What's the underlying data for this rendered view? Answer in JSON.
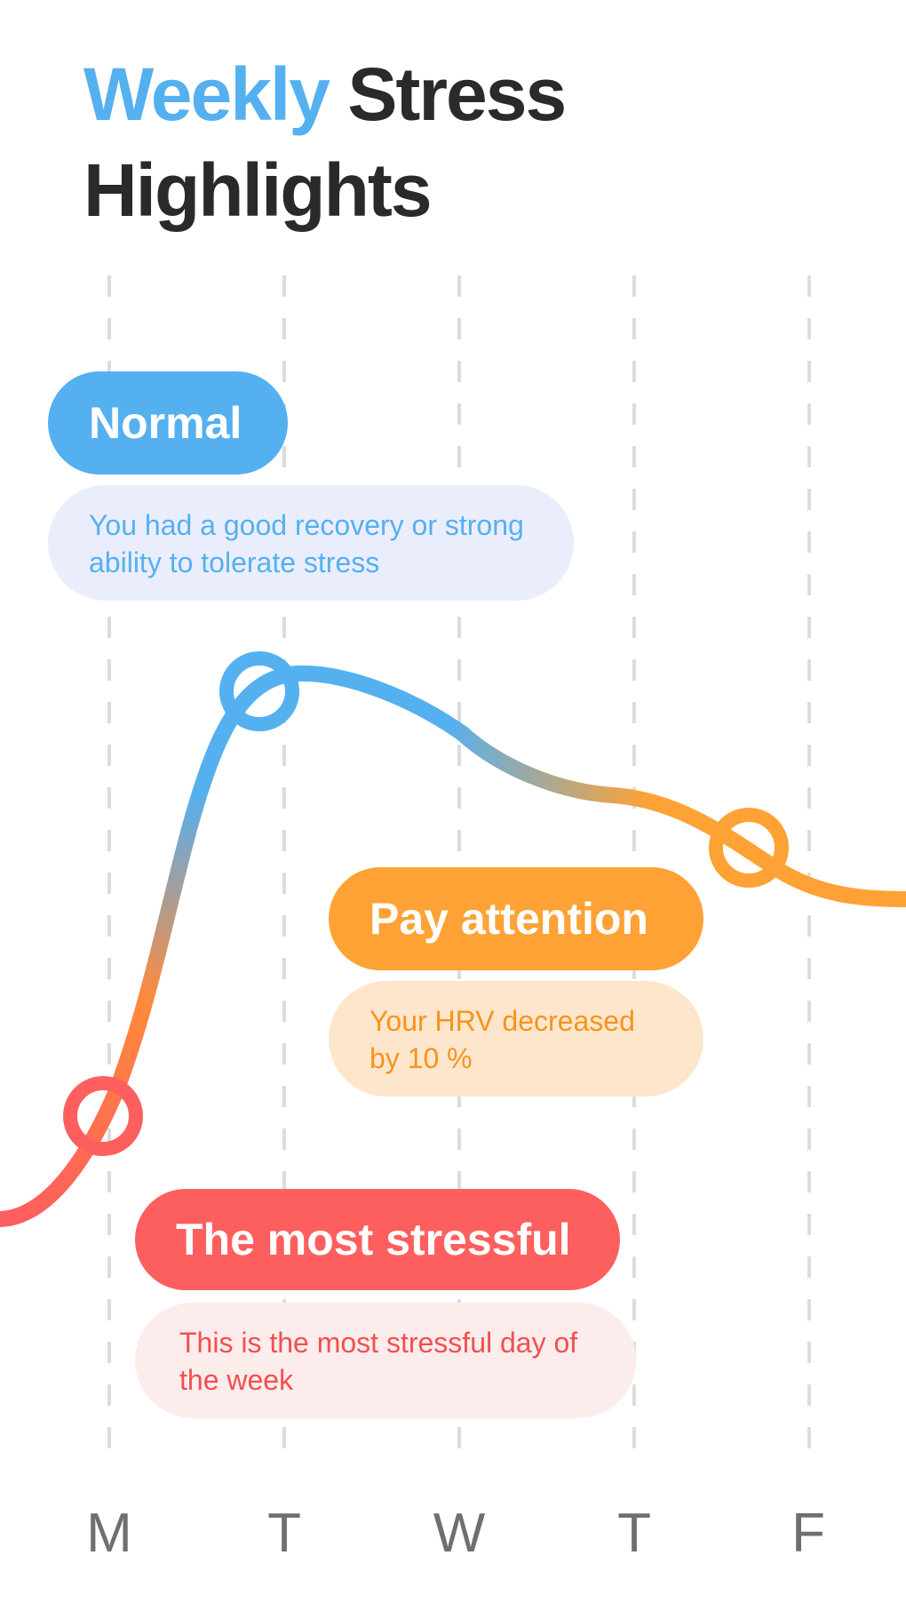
{
  "title": {
    "accent": "Weekly",
    "rest_line1": "Stress",
    "line2": "Highlights"
  },
  "chart_data": {
    "type": "line",
    "x": [
      "M",
      "T",
      "W",
      "T",
      "F"
    ],
    "curve_colors": {
      "low": "#ff5e5e",
      "mid": "#ff9a35",
      "high": "#55b0f0"
    },
    "highlighted_points": [
      {
        "day": "M",
        "level": "The most stressful"
      },
      {
        "day": "T",
        "level": "Normal"
      },
      {
        "day": "T",
        "level": "Pay attention"
      }
    ]
  },
  "callouts": {
    "normal": {
      "label": "Normal",
      "text": "You had a good recovery or strong ability to tolerate stress",
      "color": "#55b0f0",
      "bg": "#eaeefc"
    },
    "attention": {
      "label": "Pay attention",
      "text": "Your HRV decreased by 10 %",
      "color": "#ffa235",
      "bg": "#fde6cc"
    },
    "stressful": {
      "label": "The most stressful",
      "text": "This is the most stressful day of the week",
      "color": "#fd5f5f",
      "bg": "#fdecec"
    }
  },
  "days": [
    "M",
    "T",
    "W",
    "T",
    "F"
  ]
}
